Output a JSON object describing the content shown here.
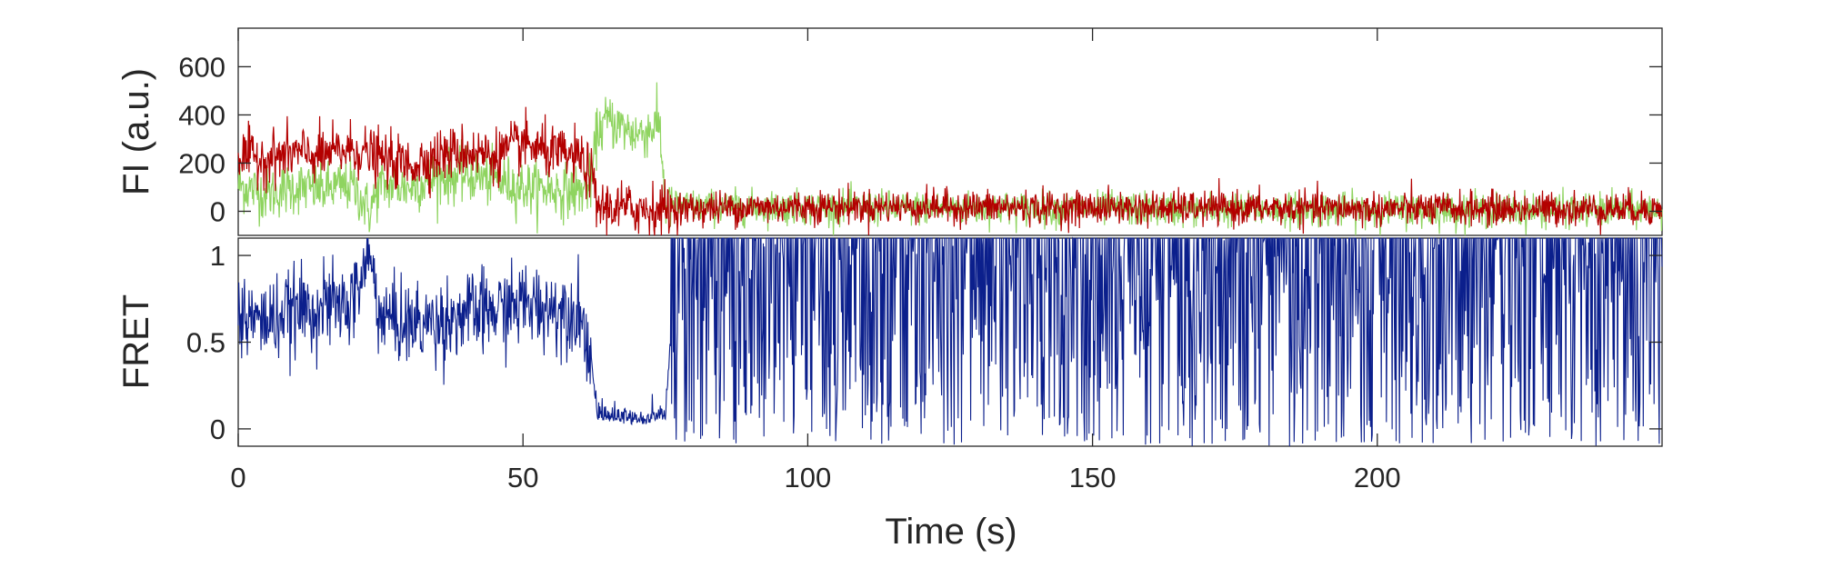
{
  "chart_data": [
    {
      "type": "line",
      "title": "",
      "xlabel": "",
      "ylabel": "FI (a.u.)",
      "xlim": [
        0,
        250
      ],
      "ylim": [
        -100,
        760
      ],
      "yticks": [
        0,
        200,
        400,
        600
      ],
      "ytick_labels": [
        "0",
        "200",
        "400",
        "600"
      ],
      "legend": "none",
      "grid": false,
      "series": [
        {
          "color": "#8fd460",
          "description_points": [
            {
              "t": 0,
              "v": 110
            },
            {
              "t": 5,
              "v": 70
            },
            {
              "t": 10,
              "v": 100
            },
            {
              "t": 15,
              "v": 90
            },
            {
              "t": 20,
              "v": 110
            },
            {
              "t": 23,
              "v": 0
            },
            {
              "t": 25,
              "v": 110
            },
            {
              "t": 30,
              "v": 100
            },
            {
              "t": 35,
              "v": 140
            },
            {
              "t": 40,
              "v": 150
            },
            {
              "t": 45,
              "v": 130
            },
            {
              "t": 50,
              "v": 100
            },
            {
              "t": 55,
              "v": 90
            },
            {
              "t": 60,
              "v": 80
            },
            {
              "t": 62,
              "v": 120
            },
            {
              "t": 63,
              "v": 330
            },
            {
              "t": 65,
              "v": 380
            },
            {
              "t": 68,
              "v": 340
            },
            {
              "t": 70,
              "v": 320
            },
            {
              "t": 74,
              "v": 360
            },
            {
              "t": 75,
              "v": 30
            },
            {
              "t": 80,
              "v": 20
            },
            {
              "t": 100,
              "v": 15
            },
            {
              "t": 150,
              "v": 10
            },
            {
              "t": 200,
              "v": 5
            },
            {
              "t": 250,
              "v": 5
            }
          ]
        },
        {
          "color": "#b30000",
          "description_points": [
            {
              "t": 0,
              "v": 230
            },
            {
              "t": 5,
              "v": 220
            },
            {
              "t": 10,
              "v": 240
            },
            {
              "t": 15,
              "v": 230
            },
            {
              "t": 20,
              "v": 260
            },
            {
              "t": 25,
              "v": 220
            },
            {
              "t": 30,
              "v": 190
            },
            {
              "t": 35,
              "v": 230
            },
            {
              "t": 40,
              "v": 250
            },
            {
              "t": 45,
              "v": 230
            },
            {
              "t": 50,
              "v": 280
            },
            {
              "t": 55,
              "v": 240
            },
            {
              "t": 60,
              "v": 220
            },
            {
              "t": 62,
              "v": 150
            },
            {
              "t": 63,
              "v": 20
            },
            {
              "t": 70,
              "v": 10
            },
            {
              "t": 75,
              "v": 10
            },
            {
              "t": 100,
              "v": 20
            },
            {
              "t": 150,
              "v": 15
            },
            {
              "t": 200,
              "v": 10
            },
            {
              "t": 250,
              "v": 10
            }
          ]
        }
      ]
    },
    {
      "type": "line",
      "title": "",
      "xlabel": "Time (s)",
      "ylabel": "FRET",
      "xlim": [
        0,
        250
      ],
      "ylim": [
        -0.1,
        1.1
      ],
      "xticks": [
        0,
        50,
        100,
        150,
        200
      ],
      "xtick_labels": [
        "0",
        "50",
        "100",
        "150",
        "200"
      ],
      "yticks": [
        0,
        0.5,
        1
      ],
      "ytick_labels": [
        "0",
        "0.5",
        "1"
      ],
      "legend": "none",
      "grid": false,
      "series": [
        {
          "color": "#0b1f8c",
          "description_points": [
            {
              "t": 0,
              "v": 0.65
            },
            {
              "t": 5,
              "v": 0.62
            },
            {
              "t": 10,
              "v": 0.68
            },
            {
              "t": 15,
              "v": 0.7
            },
            {
              "t": 20,
              "v": 0.72
            },
            {
              "t": 23,
              "v": 1.0
            },
            {
              "t": 25,
              "v": 0.65
            },
            {
              "t": 30,
              "v": 0.6
            },
            {
              "t": 35,
              "v": 0.62
            },
            {
              "t": 40,
              "v": 0.66
            },
            {
              "t": 45,
              "v": 0.68
            },
            {
              "t": 50,
              "v": 0.72
            },
            {
              "t": 55,
              "v": 0.7
            },
            {
              "t": 60,
              "v": 0.68
            },
            {
              "t": 62,
              "v": 0.4
            },
            {
              "t": 63,
              "v": 0.05
            },
            {
              "t": 70,
              "v": 0.02
            },
            {
              "t": 75,
              "v": 0.05
            },
            {
              "t": 76,
              "v": 0.5
            },
            {
              "t": 250,
              "v": 0.5
            }
          ]
        }
      ]
    }
  ]
}
